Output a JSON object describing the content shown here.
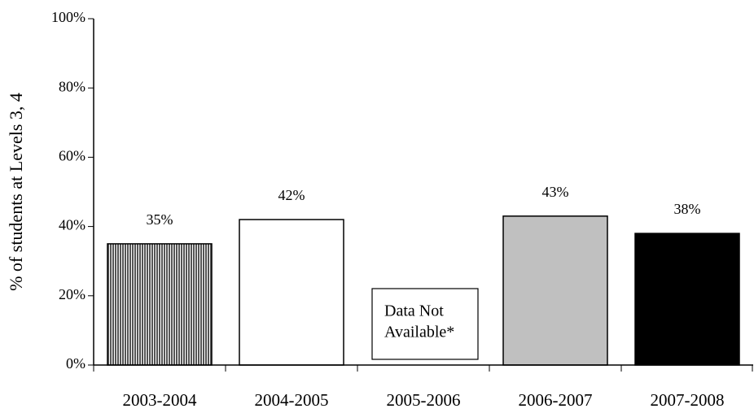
{
  "chart_data": {
    "type": "bar",
    "y_label": "% of students at Levels 3, 4",
    "categories": [
      "2003-2004",
      "2004-2005",
      "2005-2006",
      "2006-2007",
      "2007-2008"
    ],
    "values": [
      35,
      42,
      null,
      43,
      38
    ],
    "value_labels": [
      "35%",
      "42%",
      null,
      "43%",
      "38%"
    ],
    "colors": [
      "#808080",
      "#ffffff",
      null,
      "#c0c0c0",
      "#000000"
    ],
    "hatch": [
      true,
      false,
      false,
      false,
      false
    ],
    "annotation": [
      "Data Not",
      "Available*"
    ],
    "ylim": [
      0,
      100
    ],
    "yticks": [
      {
        "value": 0,
        "label": "0%"
      },
      {
        "value": 20,
        "label": "20%"
      },
      {
        "value": 40,
        "label": "40%"
      },
      {
        "value": 60,
        "label": "60%"
      },
      {
        "value": 80,
        "label": "80%"
      },
      {
        "value": 100,
        "label": "100%"
      }
    ]
  }
}
